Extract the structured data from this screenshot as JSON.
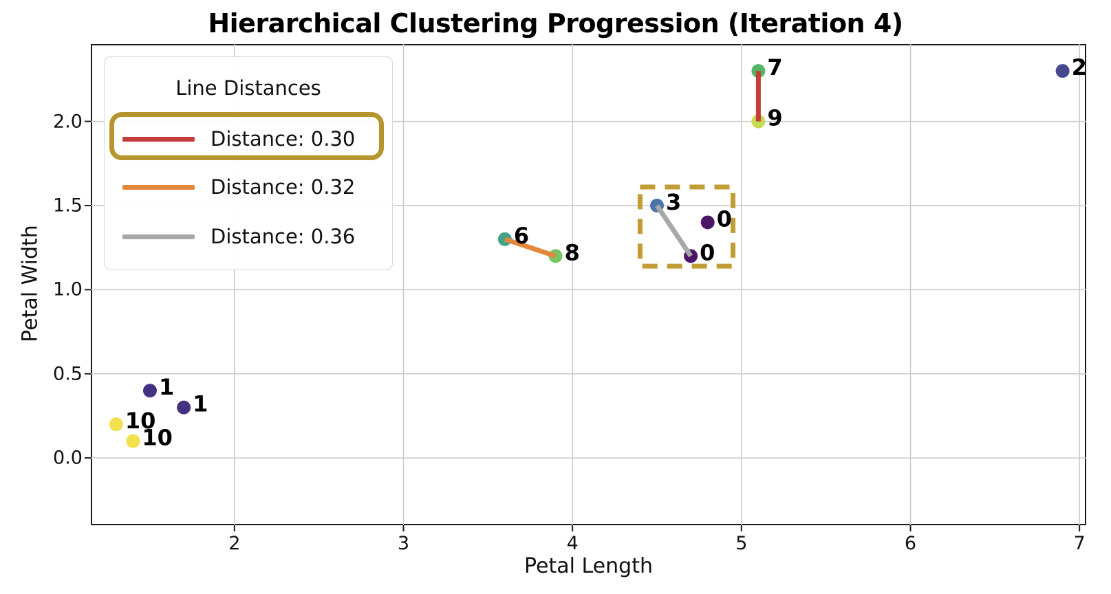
{
  "title": "Hierarchical Clustering Progression (Iteration 4)",
  "axes": {
    "xlabel": "Petal Length",
    "ylabel": "Petal Width"
  },
  "legend": {
    "title": "Line Distances",
    "entries": [
      {
        "label": "Distance: 0.30",
        "color": "#c43e39",
        "highlighted": true
      },
      {
        "label": "Distance: 0.32",
        "color": "#e2873c",
        "highlighted": false
      },
      {
        "label": "Distance: 0.36",
        "color": "#a8a8a8",
        "highlighted": false
      }
    ],
    "highlight_ring_color": "#b6952f"
  },
  "chart_data": {
    "type": "scatter",
    "title": "Hierarchical Clustering Progression (Iteration 4)",
    "xlabel": "Petal Length",
    "ylabel": "Petal Width",
    "xlim": [
      1.15,
      7.04
    ],
    "ylim": [
      -0.4,
      2.46
    ],
    "x_tick_values": [
      2,
      3,
      4,
      5,
      6,
      7
    ],
    "x_tick_labels": [
      "2",
      "3",
      "4",
      "5",
      "6",
      "7"
    ],
    "y_tick_values": [
      0.0,
      0.5,
      1.0,
      1.5,
      2.0
    ],
    "y_tick_labels": [
      "0.0",
      "0.5",
      "1.0",
      "1.5",
      "2.0"
    ],
    "grid": true,
    "grid_color": "#c9c9c9",
    "points": [
      {
        "x": 5.1,
        "y": 2.3,
        "label": "7",
        "color": "#55b567"
      },
      {
        "x": 5.1,
        "y": 2.0,
        "label": "9",
        "color": "#c6da50"
      },
      {
        "x": 6.9,
        "y": 2.3,
        "label": "2",
        "color": "#46488f"
      },
      {
        "x": 4.5,
        "y": 1.5,
        "label": "3",
        "color": "#4a74a8"
      },
      {
        "x": 4.8,
        "y": 1.4,
        "label": "0",
        "color": "#4c1668"
      },
      {
        "x": 4.7,
        "y": 1.2,
        "label": "0",
        "color": "#4c1668"
      },
      {
        "x": 3.6,
        "y": 1.3,
        "label": "6",
        "color": "#41a287"
      },
      {
        "x": 3.9,
        "y": 1.2,
        "label": "8",
        "color": "#73c662"
      },
      {
        "x": 1.5,
        "y": 0.4,
        "label": "1",
        "color": "#443181"
      },
      {
        "x": 1.7,
        "y": 0.3,
        "label": "1",
        "color": "#443181"
      },
      {
        "x": 1.3,
        "y": 0.2,
        "label": "10",
        "color": "#f2e14d"
      },
      {
        "x": 1.4,
        "y": 0.1,
        "label": "10",
        "color": "#f2e14d"
      }
    ],
    "lines": [
      {
        "x1": 5.1,
        "y1": 2.3,
        "x2": 5.1,
        "y2": 2.0,
        "color": "#c43e39",
        "distance": 0.3
      },
      {
        "x1": 3.6,
        "y1": 1.3,
        "x2": 3.9,
        "y2": 1.2,
        "color": "#e2873c",
        "distance": 0.32
      },
      {
        "x1": 4.5,
        "y1": 1.5,
        "x2": 4.7,
        "y2": 1.2,
        "color": "#a8a8a8",
        "distance": 0.36
      }
    ],
    "highlight_box": {
      "x_min": 4.4,
      "x_max": 4.95,
      "y_min": 1.14,
      "y_max": 1.61,
      "color": "#c29c35",
      "style": "dashed"
    },
    "legend_position": "upper left"
  }
}
